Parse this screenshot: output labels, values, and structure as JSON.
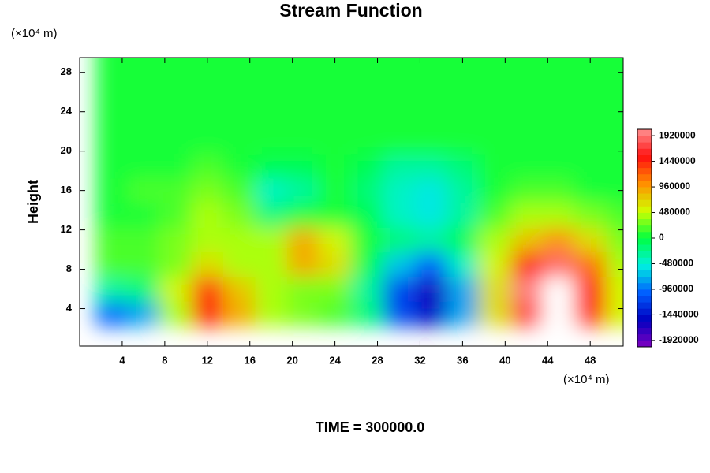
{
  "chart_data": {
    "type": "contour",
    "title": "Stream Function",
    "ylabel": "Height",
    "y_unit": "(×10⁴ m)",
    "x_unit": "(×10⁴ m)",
    "footer": "TIME = 300000.0",
    "xlim": [
      0,
      51.1
    ],
    "ylim": [
      0.2,
      29.5
    ],
    "xticks": [
      4,
      8,
      12,
      16,
      20,
      24,
      28,
      32,
      36,
      40,
      44,
      48
    ],
    "yticks": [
      4,
      8,
      12,
      16,
      20,
      24,
      28
    ],
    "x": [
      0,
      3,
      6,
      9,
      12,
      15,
      18,
      21,
      24,
      27,
      30,
      33,
      36,
      39,
      42,
      45,
      48,
      51
    ],
    "y": [
      1,
      3.5,
      6,
      8.5,
      11,
      13.5,
      16,
      18.5,
      21,
      23.5,
      26,
      28.5
    ],
    "z": [
      [
        100000,
        -660000,
        -430000,
        270000,
        820000,
        500000,
        350000,
        350000,
        250000,
        -70000,
        -570000,
        -830000,
        -385000,
        410000,
        1070000,
        1320000,
        870000,
        370000
      ],
      [
        -80000,
        -1070000,
        -730000,
        450000,
        1520000,
        860000,
        400000,
        300000,
        200000,
        -230000,
        -1090000,
        -1520000,
        -775000,
        600000,
        1720000,
        2150000,
        1390000,
        520000
      ],
      [
        60000,
        -310000,
        -180000,
        480000,
        1420000,
        800000,
        400000,
        350000,
        250000,
        -250000,
        -1150000,
        -1610000,
        -825000,
        670000,
        1920000,
        2400000,
        1540000,
        570000
      ],
      [
        300000,
        150000,
        150000,
        290000,
        685000,
        425000,
        450000,
        850000,
        600000,
        -100000,
        -680000,
        -970000,
        -470000,
        580000,
        1480000,
        1840000,
        1190000,
        465000
      ],
      [
        250000,
        150000,
        150000,
        250000,
        450000,
        400000,
        450000,
        900000,
        550000,
        50000,
        -170000,
        -285000,
        -90000,
        400000,
        810000,
        990000,
        670000,
        305000
      ],
      [
        150000,
        100000,
        100000,
        200000,
        450000,
        350000,
        -150000,
        0,
        100000,
        -50000,
        -450000,
        -500000,
        -300000,
        150000,
        400000,
        450000,
        350000,
        200000
      ],
      [
        100000,
        50000,
        150000,
        200000,
        350000,
        150000,
        -400000,
        -250000,
        0,
        -150000,
        -450000,
        -500000,
        -300000,
        0,
        150000,
        150000,
        100000,
        50000
      ],
      [
        100000,
        100000,
        100000,
        100000,
        150000,
        50000,
        -100000,
        -50000,
        0,
        -100000,
        -250000,
        -300000,
        -150000,
        0,
        50000,
        50000,
        50000,
        100000
      ],
      [
        0,
        0,
        0,
        0,
        0,
        0,
        0,
        0,
        0,
        0,
        0,
        0,
        0,
        0,
        0,
        0,
        0,
        0
      ],
      [
        0,
        0,
        0,
        0,
        0,
        0,
        0,
        0,
        0,
        0,
        0,
        0,
        0,
        0,
        0,
        0,
        0,
        0
      ],
      [
        0,
        0,
        0,
        0,
        0,
        0,
        0,
        0,
        0,
        0,
        0,
        0,
        0,
        0,
        0,
        0,
        0,
        0
      ],
      [
        0,
        0,
        0,
        0,
        0,
        0,
        0,
        0,
        0,
        0,
        0,
        0,
        0,
        0,
        0,
        0,
        0,
        0
      ]
    ],
    "colorbar": {
      "lim": [
        -2040000,
        2040000
      ],
      "step": 120000,
      "ticks": [
        -1920000,
        -1440000,
        -960000,
        -480000,
        0,
        480000,
        960000,
        1440000,
        1920000
      ],
      "colors": [
        "#8000c0",
        "#0000c0",
        "#0060ff",
        "#00f0e0",
        "#00ff40",
        "#d0ff00",
        "#ff9000",
        "#ff1010",
        "#ff9090"
      ],
      "over_color": "#ffffff"
    }
  }
}
